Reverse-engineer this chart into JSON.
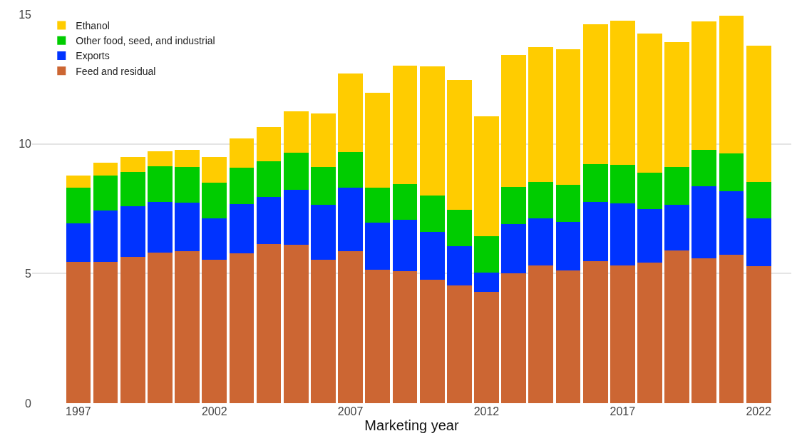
{
  "chart_data": {
    "type": "bar",
    "stacked": true,
    "xlabel": "Marketing year",
    "x": [
      1997,
      1998,
      1999,
      2000,
      2001,
      2002,
      2003,
      2004,
      2005,
      2006,
      2007,
      2008,
      2009,
      2010,
      2011,
      2012,
      2013,
      2014,
      2015,
      2016,
      2017,
      2018,
      2019,
      2020,
      2021,
      2022
    ],
    "series": [
      {
        "name": "Feed and residual",
        "color": "#cc6633",
        "values": [
          5.46,
          5.46,
          5.63,
          5.81,
          5.87,
          5.54,
          5.78,
          6.14,
          6.11,
          5.54,
          5.87,
          5.16,
          5.1,
          4.77,
          4.54,
          4.3,
          5.01,
          5.31,
          5.13,
          5.48,
          5.31,
          5.43,
          5.9,
          5.6,
          5.72,
          5.28
        ]
      },
      {
        "name": "Exports",
        "color": "#0033ff",
        "values": [
          1.48,
          1.98,
          1.96,
          1.96,
          1.87,
          1.58,
          1.9,
          1.81,
          2.13,
          2.11,
          2.43,
          1.81,
          1.96,
          1.84,
          1.51,
          0.74,
          1.9,
          1.83,
          1.87,
          2.29,
          2.4,
          2.07,
          1.75,
          2.76,
          2.46,
          1.84
        ]
      },
      {
        "name": "Other food, seed, and industrial",
        "color": "#00cc00",
        "values": [
          1.36,
          1.34,
          1.33,
          1.36,
          1.36,
          1.39,
          1.39,
          1.39,
          1.42,
          1.45,
          1.39,
          1.33,
          1.39,
          1.39,
          1.42,
          1.39,
          1.42,
          1.4,
          1.42,
          1.45,
          1.48,
          1.39,
          1.45,
          1.42,
          1.46,
          1.42
        ]
      },
      {
        "name": "Ethanol",
        "color": "#ffcc00",
        "values": [
          0.48,
          0.5,
          0.57,
          0.59,
          0.68,
          0.98,
          1.13,
          1.3,
          1.61,
          2.08,
          3.03,
          3.68,
          4.57,
          4.99,
          5.01,
          4.63,
          5.1,
          5.19,
          5.22,
          5.4,
          5.57,
          5.37,
          4.83,
          4.95,
          5.3,
          5.25
        ]
      }
    ],
    "xlim": [
      1995.3,
      2023.2
    ],
    "xticks": [
      1997,
      2002,
      2007,
      2012,
      2017,
      2022
    ],
    "ylim": [
      0,
      15
    ],
    "yticks": [
      0,
      5,
      10,
      15
    ],
    "grid": "y",
    "legend": "top left"
  }
}
